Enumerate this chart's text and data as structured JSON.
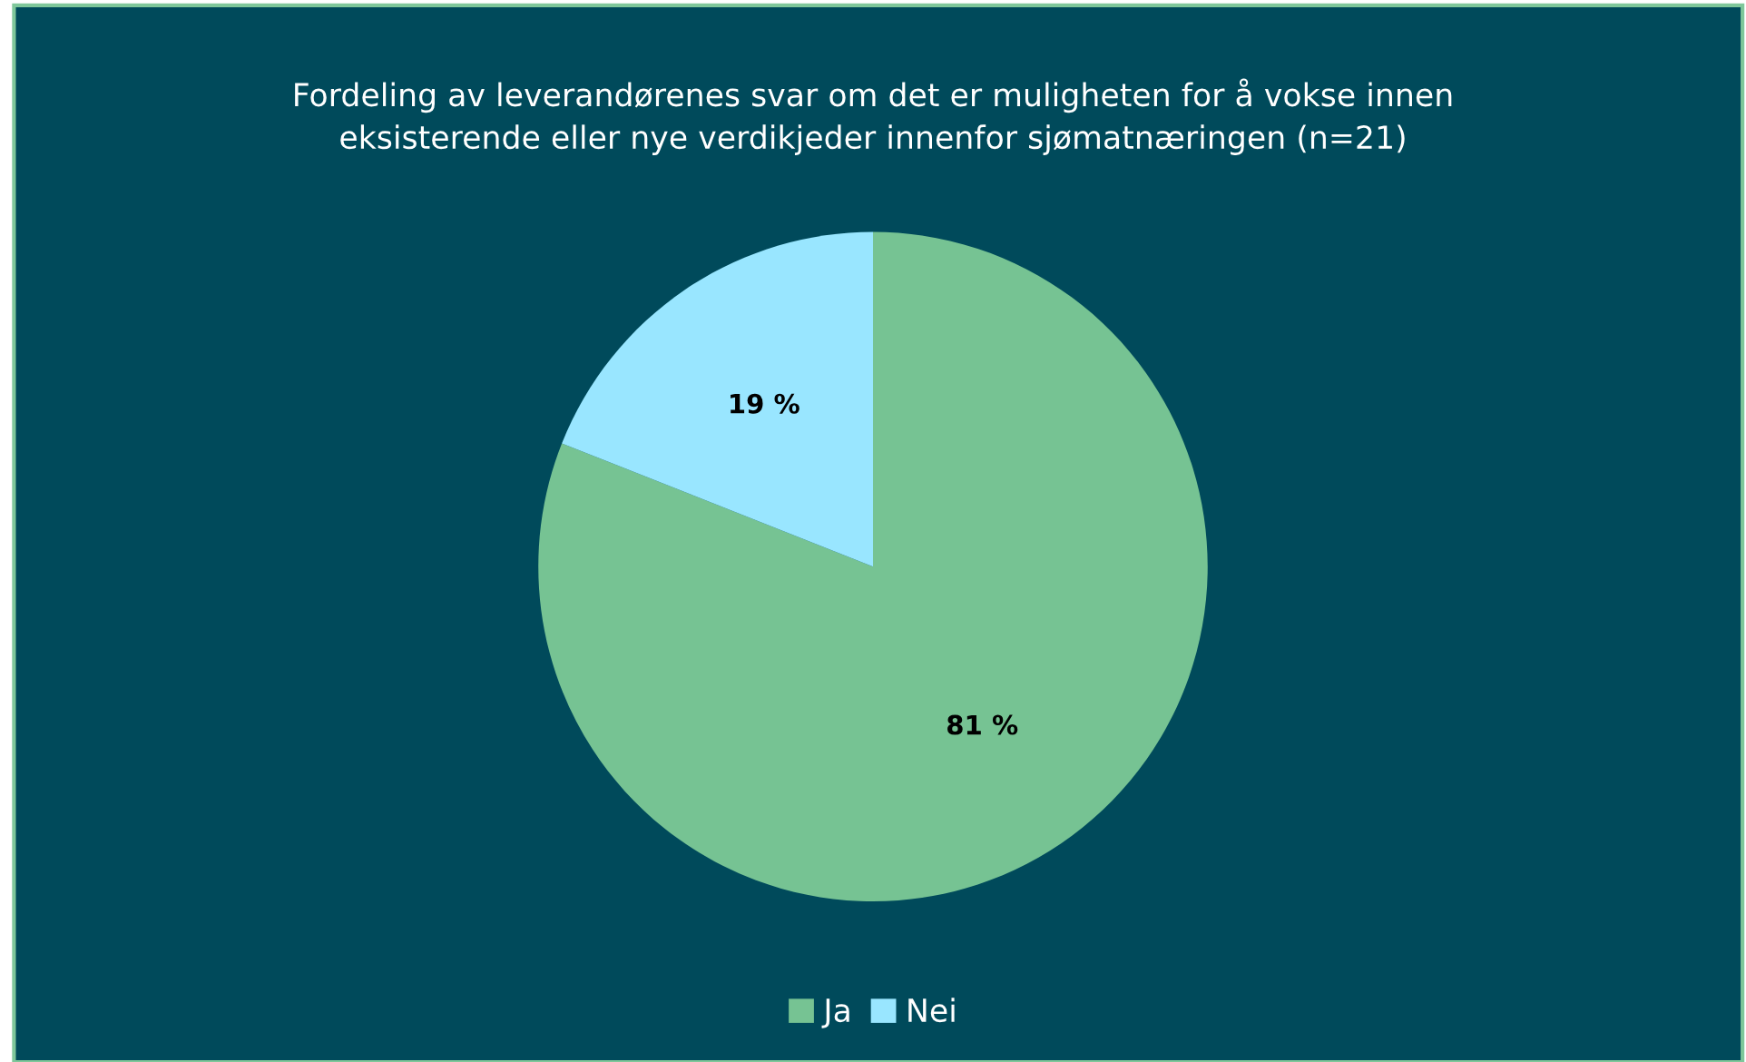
{
  "chart_data": {
    "type": "pie",
    "title": "Fordeling av leverandørenes svar om det er muligheten for å vokse innen eksisterende eller nye verdikjeder innenfor sjømatnæringen (n=21)",
    "categories": [
      "Ja",
      "Nei"
    ],
    "values": [
      81,
      19
    ],
    "value_labels": [
      "81 %",
      "19 %"
    ],
    "colors": [
      "#76c393",
      "#99e6ff"
    ],
    "legend": "bottom"
  }
}
